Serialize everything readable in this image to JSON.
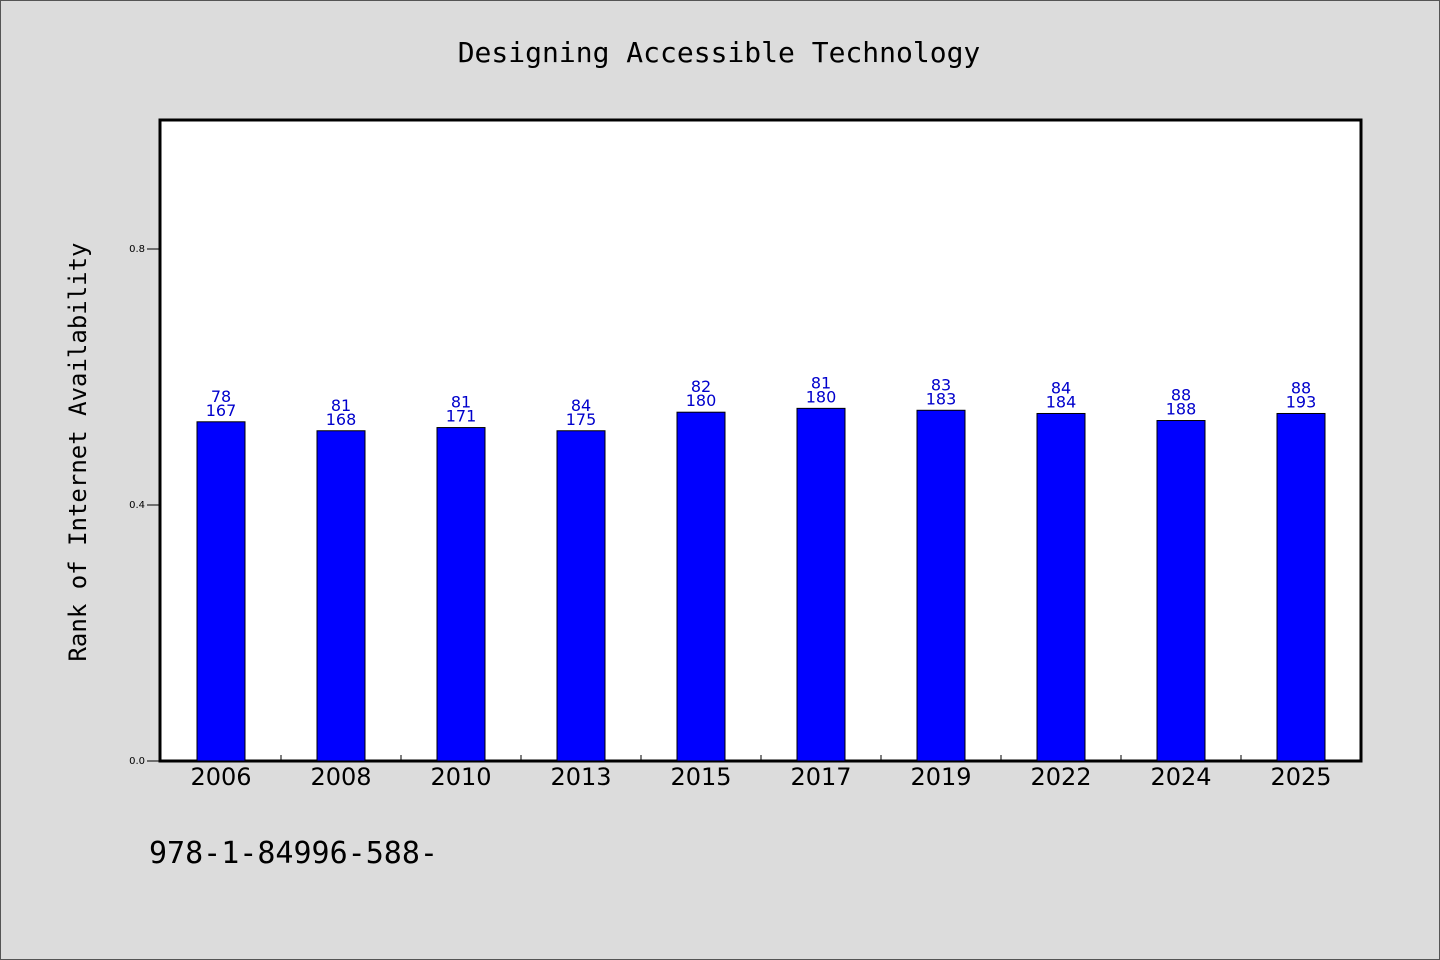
{
  "chart_data": {
    "type": "bar",
    "title": "Designing Accessible Technology",
    "ylabel": "Rank of Internet Availability",
    "xlabel": "",
    "categories": [
      "2006",
      "2008",
      "2010",
      "2013",
      "2015",
      "2017",
      "2019",
      "2022",
      "2024",
      "2025"
    ],
    "values": [
      0.53,
      0.516,
      0.521,
      0.516,
      0.545,
      0.551,
      0.548,
      0.543,
      0.532,
      0.543
    ],
    "label_top": [
      "78",
      "81",
      "81",
      "84",
      "82",
      "81",
      "83",
      "84",
      "88",
      "88"
    ],
    "label_bottom": [
      "167",
      "168",
      "171",
      "175",
      "180",
      "180",
      "183",
      "184",
      "188",
      "193"
    ],
    "ylim": [
      0,
      1.0
    ],
    "yticks": [
      0.0,
      0.4,
      0.8
    ],
    "ytick_labels": [
      "0.0",
      "0.4",
      "0.8"
    ],
    "bar_color": "#0000ff",
    "label_color": "#0000cc",
    "grid": false,
    "legend": "none"
  },
  "footer_text": "978-1-84996-588-"
}
